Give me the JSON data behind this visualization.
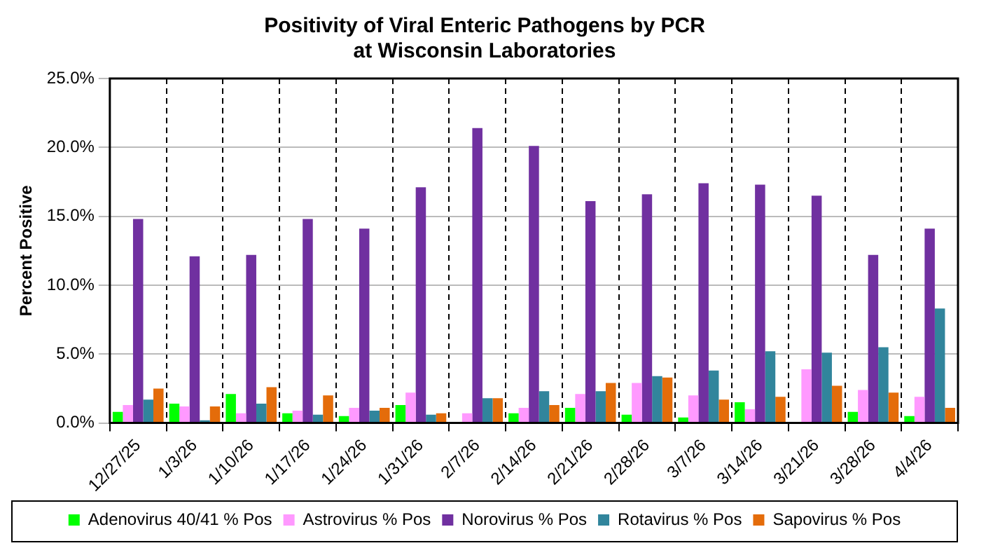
{
  "chart_data": {
    "type": "bar",
    "title": "Positivity of Viral Enteric Pathogens by PCR\nat Wisconsin Laboratories",
    "ylabel": "Percent Positive",
    "categories": [
      "12/27/25",
      "1/3/26",
      "1/10/26",
      "1/17/26",
      "1/24/26",
      "1/31/26",
      "2/7/26",
      "2/14/26",
      "2/21/26",
      "2/28/26",
      "3/7/26",
      "3/14/26",
      "3/21/26",
      "3/28/26",
      "4/4/26"
    ],
    "series": [
      {
        "name": "Adenovirus 40/41 % Pos",
        "color": "#00ff00",
        "values": [
          0.8,
          1.4,
          2.1,
          0.7,
          0.5,
          1.3,
          0,
          0.7,
          1.1,
          0.6,
          0.4,
          1.5,
          0,
          0.8,
          0.5
        ]
      },
      {
        "name": "Astrovirus % Pos",
        "color": "#ff99ff",
        "values": [
          1.3,
          1.2,
          0.7,
          0.9,
          1.1,
          2.2,
          0.7,
          1.1,
          2.1,
          2.9,
          2.0,
          1.0,
          3.9,
          2.4,
          1.9
        ]
      },
      {
        "name": "Norovirus % Pos",
        "color": "#7030a0",
        "values": [
          14.8,
          12.1,
          12.2,
          14.8,
          14.1,
          17.1,
          21.4,
          20.1,
          16.1,
          16.6,
          17.4,
          17.3,
          16.5,
          12.2,
          14.1
        ]
      },
      {
        "name": "Rotavirus % Pos",
        "color": "#31859c",
        "values": [
          1.7,
          0.2,
          1.4,
          0.6,
          0.9,
          0.6,
          1.8,
          2.3,
          2.3,
          3.4,
          3.8,
          5.2,
          5.1,
          5.5,
          8.3
        ]
      },
      {
        "name": "Sapovirus % Pos",
        "color": "#e46c0a",
        "values": [
          2.5,
          1.2,
          2.6,
          2.0,
          1.1,
          0.7,
          1.8,
          1.3,
          2.9,
          3.3,
          1.7,
          1.9,
          2.7,
          2.2,
          1.1
        ]
      }
    ],
    "ylim": [
      0,
      25
    ],
    "yticks": [
      {
        "value": 0,
        "label": "0.0%"
      },
      {
        "value": 5,
        "label": "5.0%"
      },
      {
        "value": 10,
        "label": "10.0%"
      },
      {
        "value": 15,
        "label": "15.0%"
      },
      {
        "value": 20,
        "label": "20.0%"
      },
      {
        "value": 25,
        "label": "25.0%"
      }
    ],
    "grid": true,
    "legend": "bottom"
  }
}
